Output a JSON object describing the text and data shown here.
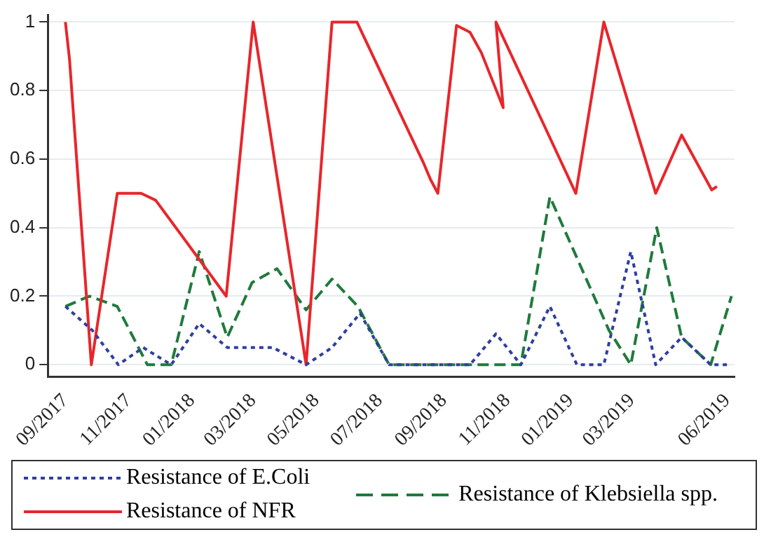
{
  "chart_data": {
    "type": "line",
    "xlim": [
      "2017-08-15",
      "2019-06-08"
    ],
    "xticks": [
      {
        "value": "2017-09-01",
        "label": "09/2017"
      },
      {
        "value": "2017-11-01",
        "label": "11/2017"
      },
      {
        "value": "2018-01-01",
        "label": "01/2018"
      },
      {
        "value": "2018-03-01",
        "label": "03/2018"
      },
      {
        "value": "2018-05-01",
        "label": "05/2018"
      },
      {
        "value": "2018-07-01",
        "label": "07/2018"
      },
      {
        "value": "2018-09-01",
        "label": "09/2018"
      },
      {
        "value": "2018-11-01",
        "label": "11/2018"
      },
      {
        "value": "2019-01-01",
        "label": "01/2019"
      },
      {
        "value": "2019-03-01",
        "label": "03/2019"
      },
      {
        "value": "2019-06-01",
        "label": "06/2019"
      }
    ],
    "ylim": [
      -0.035,
      1.02
    ],
    "yticks": [
      0,
      0.2,
      0.4,
      0.6,
      0.8,
      1
    ],
    "grid": "y",
    "legend": "bottom",
    "marker": "none",
    "series": [
      {
        "name": "Resistance of E.Coli",
        "color": "#2e3f9e",
        "line_style": "dotted",
        "x": [
          "2017-09-01",
          "2017-09-27",
          "2017-10-22",
          "2017-11-15",
          "2017-12-12",
          "2018-01-08",
          "2018-02-04",
          "2018-03-20",
          "2018-04-21",
          "2018-05-16",
          "2018-06-12",
          "2018-07-10",
          "2018-09-26",
          "2018-10-21",
          "2018-11-14",
          "2018-12-12",
          "2019-01-07",
          "2019-02-02",
          "2019-02-28",
          "2019-03-24",
          "2019-04-18",
          "2019-05-16",
          "2019-06-01"
        ],
        "values": [
          0.17,
          0.1,
          0,
          0.05,
          0,
          0.12,
          0.05,
          0.05,
          0,
          0.05,
          0.15,
          0,
          0,
          0.09,
          0,
          0.17,
          0,
          0,
          0.33,
          0,
          0.08,
          0,
          0
        ]
      },
      {
        "name": "Resistance of NFR",
        "color": "#e8262b",
        "line_style": "solid",
        "x": [
          "2017-09-01",
          "2017-09-05",
          "2017-09-26",
          "2017-10-21",
          "2017-11-13",
          "2017-11-27",
          "2018-02-03",
          "2018-03-01",
          "2018-04-21",
          "2018-05-16",
          "2018-06-09",
          "2018-08-12",
          "2018-08-19",
          "2018-08-26",
          "2018-09-13",
          "2018-09-26",
          "2018-10-07",
          "2018-10-28",
          "2018-10-21",
          "2019-01-06",
          "2019-02-02",
          "2019-03-24",
          "2019-04-18",
          "2019-05-17",
          "2019-05-22"
        ],
        "values": [
          1,
          0.89,
          0,
          0.5,
          0.5,
          0.48,
          0.2,
          1,
          0,
          1,
          1,
          0.59,
          0.54,
          0.5,
          0.99,
          0.97,
          0.91,
          0.75,
          1,
          0.5,
          1,
          0.5,
          0.67,
          0.51,
          0.52
        ]
      },
      {
        "name": "Resistance of Klebsiella spp.",
        "color": "#1f7a3c",
        "line_style": "dashed",
        "x": [
          "2017-09-01",
          "2017-09-24",
          "2017-10-21",
          "2017-11-19",
          "2017-12-12",
          "2018-01-08",
          "2018-02-04",
          "2018-02-28",
          "2018-03-24",
          "2018-04-21",
          "2018-05-16",
          "2018-06-10",
          "2018-07-10",
          "2018-11-14",
          "2018-12-12",
          "2019-02-07",
          "2019-02-28",
          "2019-03-25",
          "2019-04-18",
          "2019-05-16",
          "2019-06-05"
        ],
        "values": [
          0.17,
          0.2,
          0.17,
          0,
          0,
          0.33,
          0.08,
          0.24,
          0.28,
          0.16,
          0.25,
          0.17,
          0,
          0,
          0.49,
          0.1,
          0,
          0.4,
          0.08,
          0,
          0.2
        ]
      }
    ]
  }
}
